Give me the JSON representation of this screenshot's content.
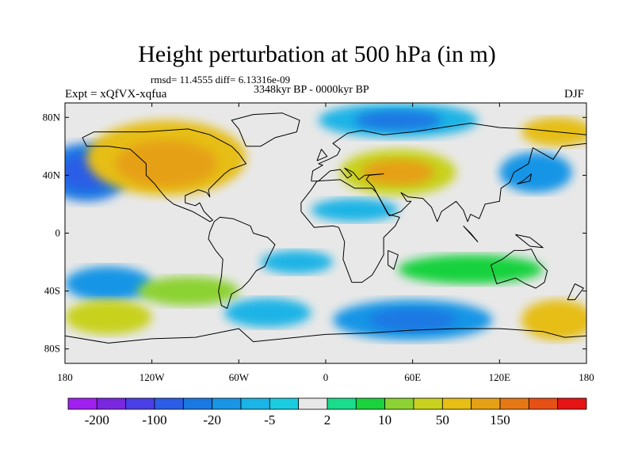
{
  "chart_data": {
    "type": "heatmap",
    "title": "Height perturbation at 500 hPa (in m)",
    "stats_text": "rmsd= 11.4555  diff= 6.13316e-09",
    "period": "3348kyr BP - 0000kyr BP",
    "experiment": "Expt = xQfVX-xqfua",
    "season": "DJF",
    "x_ticks": [
      "180",
      "120W",
      "60W",
      "0",
      "60E",
      "120E",
      "180"
    ],
    "x_values": [
      -180,
      -120,
      -60,
      0,
      60,
      120,
      180
    ],
    "y_ticks": [
      "80N",
      "40N",
      "0",
      "40S",
      "80S"
    ],
    "y_values": [
      80,
      40,
      0,
      -40,
      -80
    ],
    "xlim": [
      -180,
      180
    ],
    "ylim": [
      -90,
      90
    ],
    "colorbar": {
      "labels": [
        "-200",
        "-100",
        "-20",
        "-5",
        "2",
        "10",
        "50",
        "150"
      ],
      "colors": [
        "#a020f0",
        "#7a28e0",
        "#4b3fe6",
        "#2c5de6",
        "#1a78e3",
        "#1995e6",
        "#1ab4e6",
        "#19cce0",
        "#e8e8e8",
        "#19dc8c",
        "#19d23c",
        "#8cd232",
        "#c8d21e",
        "#e6be14",
        "#e6a014",
        "#e67814",
        "#e65014",
        "#e61414"
      ]
    },
    "anomaly_regions": [
      {
        "lon": -165,
        "lat": 42,
        "rlon": 30,
        "rlat": 20,
        "level": 4
      },
      {
        "lon": -165,
        "lat": 42,
        "rlon": 18,
        "rlat": 12,
        "level": 3
      },
      {
        "lon": -110,
        "lat": 52,
        "rlon": 55,
        "rlat": 26,
        "level": 13
      },
      {
        "lon": -110,
        "lat": 48,
        "rlon": 35,
        "rlat": 16,
        "level": 14
      },
      {
        "lon": 50,
        "lat": 78,
        "rlon": 55,
        "rlat": 12,
        "level": 6
      },
      {
        "lon": 50,
        "lat": 78,
        "rlon": 30,
        "rlat": 7,
        "level": 4
      },
      {
        "lon": 50,
        "lat": 42,
        "rlon": 40,
        "rlat": 16,
        "level": 12
      },
      {
        "lon": 50,
        "lat": 42,
        "rlon": 25,
        "rlat": 9,
        "level": 14
      },
      {
        "lon": 145,
        "lat": 42,
        "rlon": 25,
        "rlat": 14,
        "level": 5
      },
      {
        "lon": 160,
        "lat": 70,
        "rlon": 25,
        "rlat": 10,
        "level": 13
      },
      {
        "lon": 20,
        "lat": 16,
        "rlon": 30,
        "rlat": 8,
        "level": 6
      },
      {
        "lon": -150,
        "lat": -35,
        "rlon": 30,
        "rlat": 12,
        "level": 5
      },
      {
        "lon": -150,
        "lat": -58,
        "rlon": 30,
        "rlat": 12,
        "level": 12
      },
      {
        "lon": -95,
        "lat": -40,
        "rlon": 35,
        "rlat": 10,
        "level": 11
      },
      {
        "lon": -40,
        "lat": -55,
        "rlon": 30,
        "rlat": 10,
        "level": 6
      },
      {
        "lon": 60,
        "lat": -60,
        "rlon": 55,
        "rlat": 14,
        "level": 5
      },
      {
        "lon": 60,
        "lat": -60,
        "rlon": 30,
        "rlat": 8,
        "level": 4
      },
      {
        "lon": 160,
        "lat": -60,
        "rlon": 25,
        "rlat": 14,
        "level": 13
      },
      {
        "lon": 100,
        "lat": -25,
        "rlon": 50,
        "rlat": 10,
        "level": 10
      },
      {
        "lon": -20,
        "lat": -20,
        "rlon": 25,
        "rlat": 8,
        "level": 6
      }
    ]
  }
}
